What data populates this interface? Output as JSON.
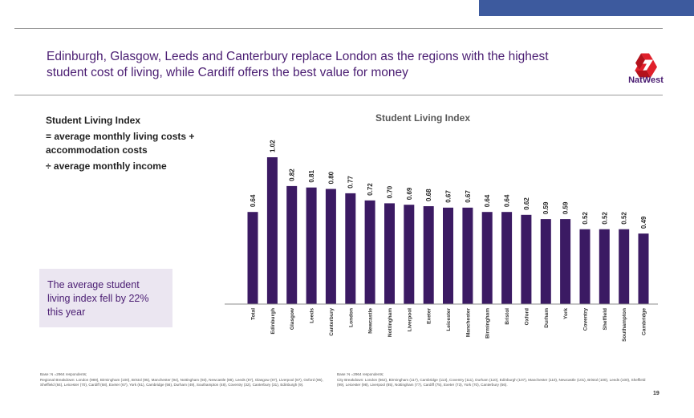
{
  "slide": {
    "headline": "Edinburgh, Glasgow, Leeds and Canterbury replace London as the regions with the highest student cost of living, while Cardiff offers the best value for money",
    "brand_name": "NatWest",
    "definition": {
      "title": "Student Living Index",
      "line1": "= average monthly living costs + accommodation costs",
      "line2": "÷ average monthly income"
    },
    "callout_text": "The average student living index fell by 22% this year",
    "footnote_left": {
      "base": "Base: N =2964 respondents;",
      "detail": "Regional Breakdown: London (989), Birmingham (100), Bristol (95), Manchester (94), Nottingham (93), Newcastle (88), Leeds (87), Glasgow (87), Liverpool (87), Oxford (86), Sheffield (84), Leicester (70), Cardiff (68), Exeter (67), York (61), Cambridge (56), Durham (49), Southampton (48), Coventry (32), Canterbury (31), Edinburgh (9)."
    },
    "footnote_right": {
      "base": "Base: N =2964 respondents;",
      "detail": "City Breakdown: London (562), Birmingham (117), Cambridge (113), Coventry (111), Durham (110), Edinburgh (107), Manchester (110), Newcastle (101), Bristol (100), Leeds (100), Sheffield (99), Leicester (98), Liverpool (85), Nottingham (77), Cardiff (75), Exeter (73), York (70), Canterbury (56)."
    },
    "page_number": "19"
  },
  "colors": {
    "bar": "#3b1a63",
    "headline": "#4a1d72",
    "brand_red": "#e0202b",
    "top_bar": "#3d5a9e",
    "callout_bg": "#ebe6f1"
  },
  "chart_data": {
    "type": "bar",
    "title": "Student Living Index",
    "categories": [
      "Total",
      "Edinburgh",
      "Glasgow",
      "Leeds",
      "Canterbury",
      "London",
      "Newcastle",
      "Nottingham",
      "Liverpool",
      "Exeter",
      "Leicester",
      "Manchester",
      "Birmingham",
      "Bristol",
      "Oxford",
      "Durham",
      "York",
      "Coventry",
      "Sheffield",
      "Southampton",
      "Cambridge"
    ],
    "values": [
      0.64,
      1.02,
      0.82,
      0.81,
      0.8,
      0.77,
      0.72,
      0.7,
      0.69,
      0.68,
      0.67,
      0.67,
      0.64,
      0.64,
      0.62,
      0.59,
      0.59,
      0.52,
      0.52,
      0.52,
      0.49
    ],
    "value_labels": [
      "0.64",
      "1.02",
      "0.82",
      "0.81",
      "0.80",
      "0.77",
      "0.72",
      "0.70",
      "0.69",
      "0.68",
      "0.67",
      "0.67",
      "0.64",
      "0.64",
      "0.62",
      "0.59",
      "0.59",
      "0.52",
      "0.52",
      "0.52",
      "0.49"
    ],
    "xlabel": "",
    "ylabel": "",
    "ylim": [
      0,
      1.02
    ],
    "grid": false,
    "legend": "none"
  }
}
